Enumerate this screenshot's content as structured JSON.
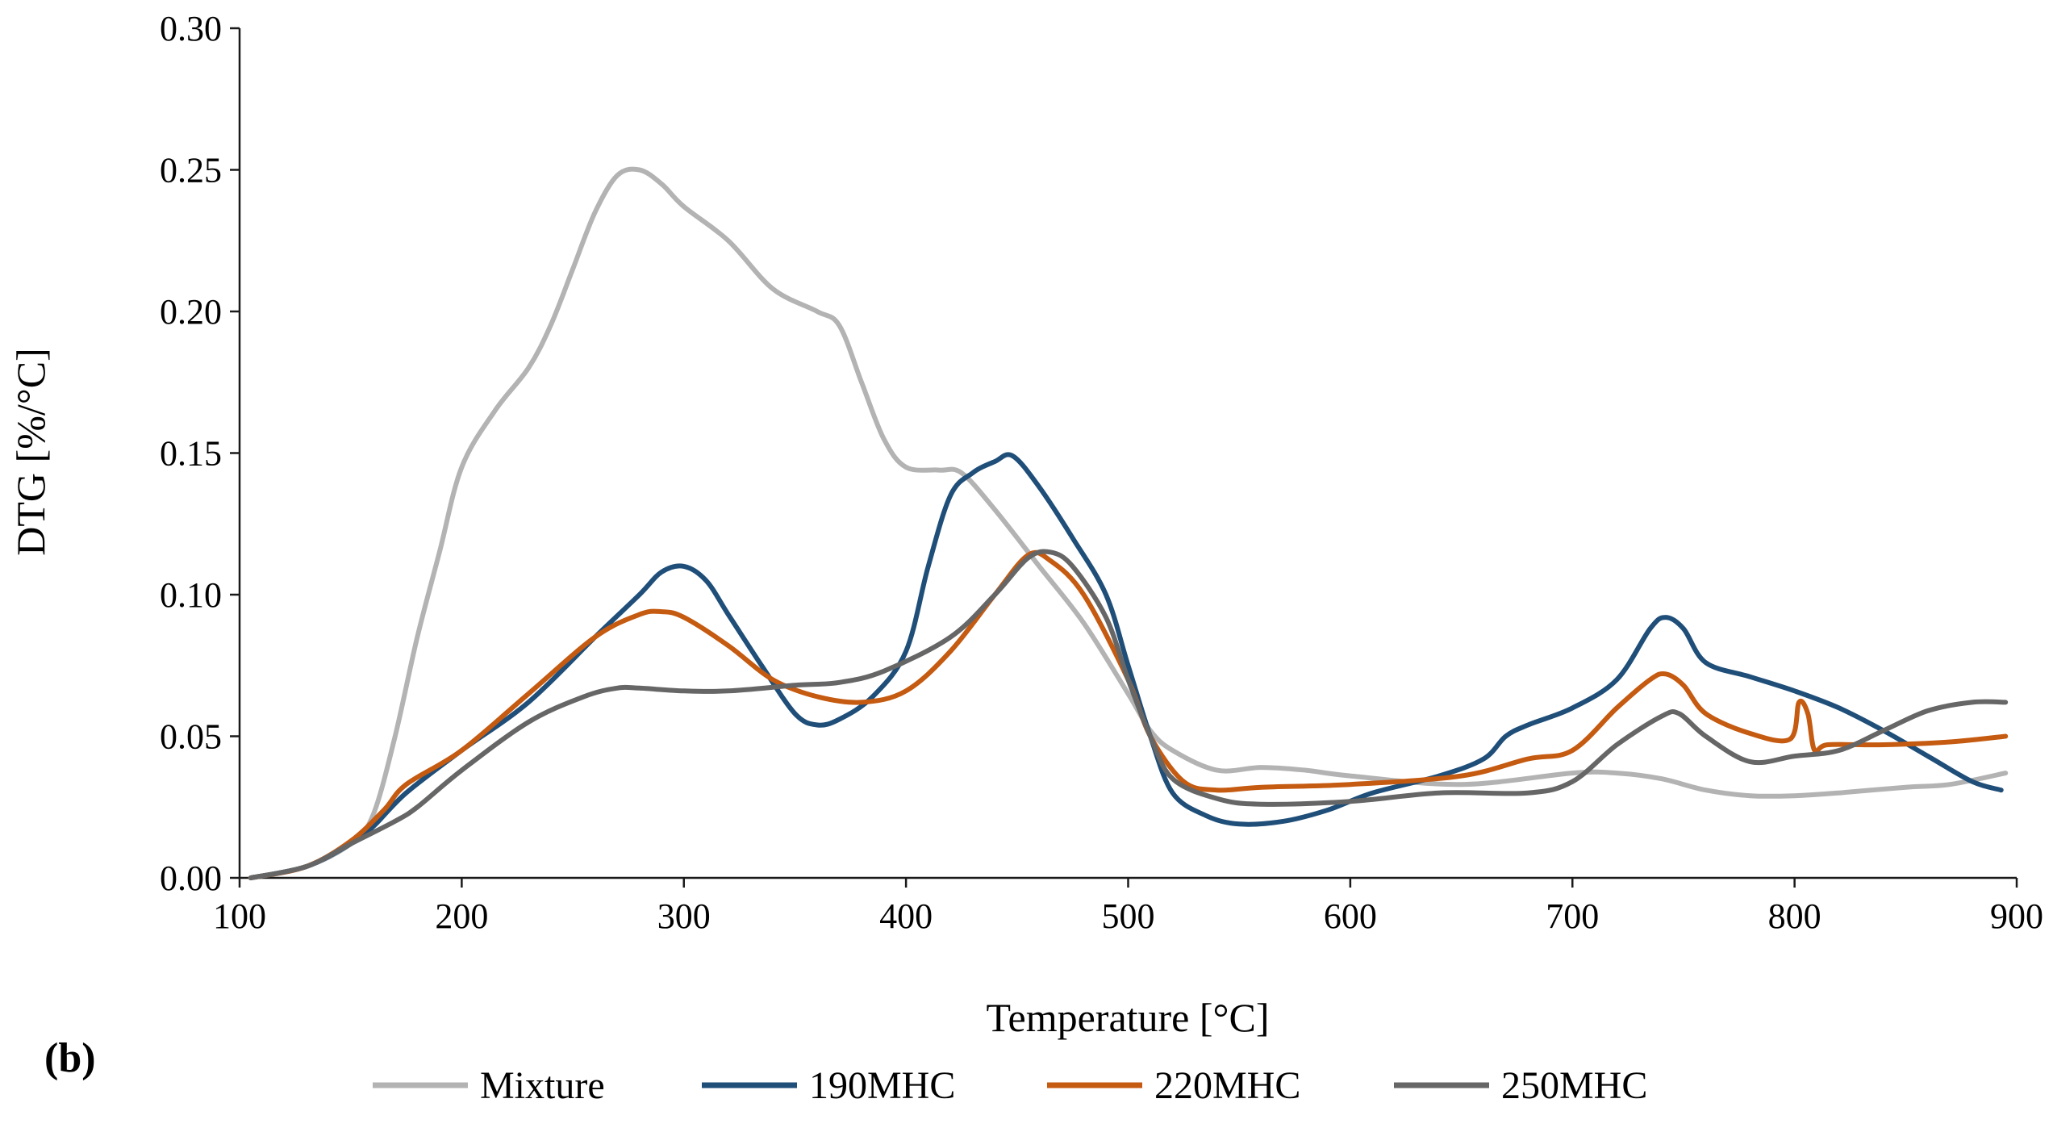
{
  "panel_label": "(b)",
  "chart_data": {
    "type": "line",
    "title": "",
    "xlabel": "Temperature [°C]",
    "ylabel": "DTG [%/°C]",
    "xlim": [
      100,
      900
    ],
    "ylim": [
      0,
      0.3
    ],
    "xticks": [
      100,
      200,
      300,
      400,
      500,
      600,
      700,
      800,
      900
    ],
    "yticks": [
      0.0,
      0.05,
      0.1,
      0.15,
      0.2,
      0.25,
      0.3
    ],
    "xtick_labels": [
      "100",
      "200",
      "300",
      "400",
      "500",
      "600",
      "700",
      "800",
      "900"
    ],
    "ytick_labels": [
      "0.00",
      "0.05",
      "0.10",
      "0.15",
      "0.20",
      "0.25",
      "0.30"
    ],
    "grid": false,
    "legend_position": "bottom",
    "series": [
      {
        "name": "Mixture",
        "color": "#b3b3b3",
        "points": [
          [
            105,
            0.0
          ],
          [
            130,
            0.004
          ],
          [
            150,
            0.012
          ],
          [
            160,
            0.022
          ],
          [
            170,
            0.05
          ],
          [
            180,
            0.085
          ],
          [
            190,
            0.115
          ],
          [
            200,
            0.145
          ],
          [
            215,
            0.165
          ],
          [
            230,
            0.18
          ],
          [
            240,
            0.195
          ],
          [
            250,
            0.215
          ],
          [
            260,
            0.235
          ],
          [
            270,
            0.248
          ],
          [
            280,
            0.25
          ],
          [
            290,
            0.245
          ],
          [
            300,
            0.237
          ],
          [
            320,
            0.225
          ],
          [
            340,
            0.208
          ],
          [
            360,
            0.2
          ],
          [
            370,
            0.195
          ],
          [
            380,
            0.175
          ],
          [
            390,
            0.155
          ],
          [
            400,
            0.145
          ],
          [
            415,
            0.144
          ],
          [
            425,
            0.143
          ],
          [
            440,
            0.13
          ],
          [
            460,
            0.11
          ],
          [
            480,
            0.09
          ],
          [
            500,
            0.065
          ],
          [
            510,
            0.052
          ],
          [
            520,
            0.045
          ],
          [
            540,
            0.038
          ],
          [
            560,
            0.039
          ],
          [
            580,
            0.038
          ],
          [
            600,
            0.036
          ],
          [
            650,
            0.033
          ],
          [
            700,
            0.037
          ],
          [
            720,
            0.037
          ],
          [
            740,
            0.035
          ],
          [
            760,
            0.031
          ],
          [
            780,
            0.029
          ],
          [
            800,
            0.029
          ],
          [
            820,
            0.03
          ],
          [
            850,
            0.032
          ],
          [
            870,
            0.033
          ],
          [
            895,
            0.037
          ]
        ]
      },
      {
        "name": "190MHC",
        "color": "#1f4e79",
        "points": [
          [
            105,
            0.0
          ],
          [
            130,
            0.004
          ],
          [
            150,
            0.012
          ],
          [
            160,
            0.018
          ],
          [
            175,
            0.03
          ],
          [
            200,
            0.045
          ],
          [
            230,
            0.062
          ],
          [
            260,
            0.085
          ],
          [
            280,
            0.1
          ],
          [
            290,
            0.108
          ],
          [
            300,
            0.11
          ],
          [
            310,
            0.105
          ],
          [
            320,
            0.093
          ],
          [
            335,
            0.075
          ],
          [
            350,
            0.058
          ],
          [
            360,
            0.054
          ],
          [
            370,
            0.056
          ],
          [
            385,
            0.064
          ],
          [
            400,
            0.08
          ],
          [
            410,
            0.11
          ],
          [
            420,
            0.135
          ],
          [
            430,
            0.143
          ],
          [
            440,
            0.147
          ],
          [
            448,
            0.149
          ],
          [
            460,
            0.138
          ],
          [
            475,
            0.12
          ],
          [
            490,
            0.1
          ],
          [
            500,
            0.075
          ],
          [
            510,
            0.05
          ],
          [
            520,
            0.03
          ],
          [
            535,
            0.022
          ],
          [
            550,
            0.019
          ],
          [
            570,
            0.02
          ],
          [
            590,
            0.024
          ],
          [
            610,
            0.03
          ],
          [
            640,
            0.036
          ],
          [
            660,
            0.042
          ],
          [
            670,
            0.05
          ],
          [
            680,
            0.054
          ],
          [
            700,
            0.06
          ],
          [
            720,
            0.07
          ],
          [
            735,
            0.088
          ],
          [
            742,
            0.092
          ],
          [
            750,
            0.088
          ],
          [
            760,
            0.076
          ],
          [
            780,
            0.071
          ],
          [
            800,
            0.066
          ],
          [
            820,
            0.06
          ],
          [
            840,
            0.052
          ],
          [
            860,
            0.043
          ],
          [
            880,
            0.034
          ],
          [
            893,
            0.031
          ]
        ]
      },
      {
        "name": "220MHC",
        "color": "#c55a11",
        "points": [
          [
            105,
            0.0
          ],
          [
            130,
            0.004
          ],
          [
            150,
            0.013
          ],
          [
            165,
            0.024
          ],
          [
            175,
            0.033
          ],
          [
            200,
            0.045
          ],
          [
            230,
            0.065
          ],
          [
            260,
            0.085
          ],
          [
            280,
            0.093
          ],
          [
            290,
            0.094
          ],
          [
            300,
            0.092
          ],
          [
            320,
            0.082
          ],
          [
            340,
            0.07
          ],
          [
            360,
            0.064
          ],
          [
            380,
            0.062
          ],
          [
            400,
            0.066
          ],
          [
            420,
            0.08
          ],
          [
            440,
            0.1
          ],
          [
            455,
            0.114
          ],
          [
            465,
            0.112
          ],
          [
            480,
            0.1
          ],
          [
            500,
            0.07
          ],
          [
            510,
            0.05
          ],
          [
            525,
            0.034
          ],
          [
            540,
            0.031
          ],
          [
            560,
            0.032
          ],
          [
            600,
            0.033
          ],
          [
            650,
            0.036
          ],
          [
            680,
            0.042
          ],
          [
            700,
            0.045
          ],
          [
            720,
            0.06
          ],
          [
            735,
            0.07
          ],
          [
            742,
            0.072
          ],
          [
            750,
            0.068
          ],
          [
            760,
            0.058
          ],
          [
            780,
            0.051
          ],
          [
            798,
            0.049
          ],
          [
            802,
            0.062
          ],
          [
            806,
            0.058
          ],
          [
            809,
            0.045
          ],
          [
            815,
            0.047
          ],
          [
            840,
            0.047
          ],
          [
            870,
            0.048
          ],
          [
            895,
            0.05
          ]
        ]
      },
      {
        "name": "250MHC",
        "color": "#666666",
        "points": [
          [
            105,
            0.0
          ],
          [
            130,
            0.004
          ],
          [
            150,
            0.012
          ],
          [
            170,
            0.02
          ],
          [
            180,
            0.025
          ],
          [
            200,
            0.038
          ],
          [
            230,
            0.055
          ],
          [
            255,
            0.064
          ],
          [
            270,
            0.067
          ],
          [
            280,
            0.067
          ],
          [
            300,
            0.066
          ],
          [
            320,
            0.066
          ],
          [
            350,
            0.068
          ],
          [
            370,
            0.069
          ],
          [
            390,
            0.073
          ],
          [
            420,
            0.085
          ],
          [
            440,
            0.1
          ],
          [
            455,
            0.113
          ],
          [
            465,
            0.115
          ],
          [
            475,
            0.11
          ],
          [
            490,
            0.092
          ],
          [
            500,
            0.07
          ],
          [
            510,
            0.05
          ],
          [
            520,
            0.035
          ],
          [
            540,
            0.028
          ],
          [
            560,
            0.026
          ],
          [
            600,
            0.027
          ],
          [
            640,
            0.03
          ],
          [
            680,
            0.03
          ],
          [
            700,
            0.034
          ],
          [
            720,
            0.047
          ],
          [
            740,
            0.057
          ],
          [
            748,
            0.058
          ],
          [
            760,
            0.05
          ],
          [
            780,
            0.041
          ],
          [
            800,
            0.043
          ],
          [
            820,
            0.045
          ],
          [
            840,
            0.052
          ],
          [
            860,
            0.059
          ],
          [
            880,
            0.062
          ],
          [
            895,
            0.062
          ]
        ]
      }
    ]
  }
}
